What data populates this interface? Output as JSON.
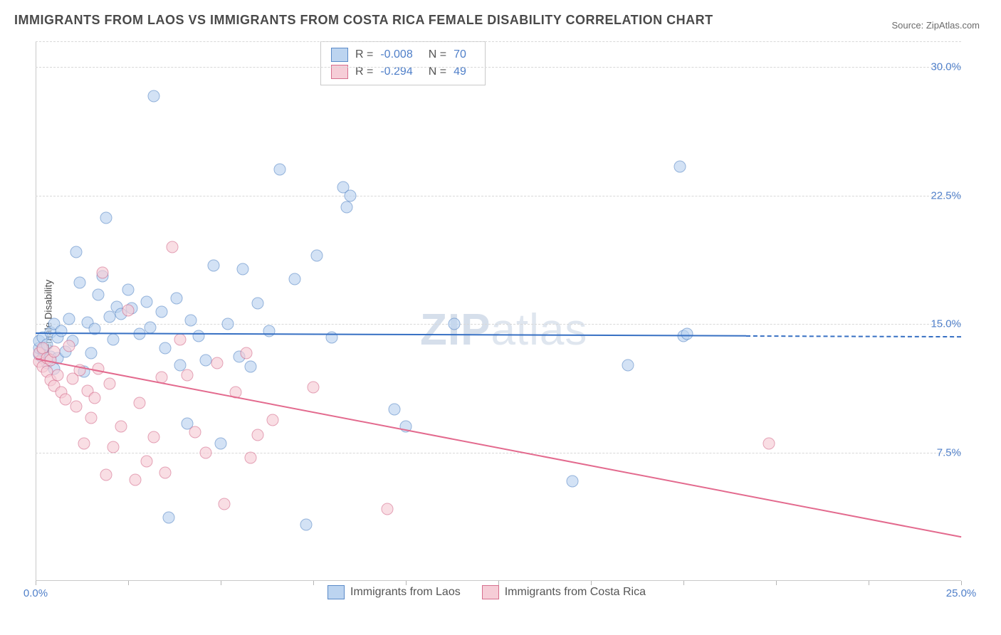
{
  "title": "IMMIGRANTS FROM LAOS VS IMMIGRANTS FROM COSTA RICA FEMALE DISABILITY CORRELATION CHART",
  "source_label": "Source: ZipAtlas.com",
  "ylabel": "Female Disability",
  "watermark": "ZIPatlas",
  "chart": {
    "type": "scatter",
    "xlim": [
      0,
      25
    ],
    "ylim": [
      0,
      31.5
    ],
    "xticks": [
      0,
      2.5,
      5,
      7.5,
      10,
      12.5,
      15,
      17.5,
      20,
      22.5,
      25
    ],
    "xtick_labels": {
      "0": "0.0%",
      "25": "25.0%"
    },
    "yticks": [
      7.5,
      15.0,
      22.5,
      30.0
    ],
    "ytick_labels": [
      "7.5%",
      "15.0%",
      "22.5%",
      "30.0%"
    ],
    "grid_dashes_y": [
      7.5,
      15.0,
      22.5,
      30.0,
      31.5
    ],
    "background_color": "#ffffff",
    "grid_color": "#d8d8d8",
    "axis_color": "#c9c9c9",
    "tick_label_color": "#4f7fc9",
    "marker_size": 17,
    "marker_opacity": 0.65,
    "marker_border_width": 1.2,
    "series": [
      {
        "name": "Immigrants from Laos",
        "fill_color": "#bcd4f0",
        "stroke_color": "#5a8ac8",
        "R": "-0.008",
        "N": "70",
        "trend": {
          "y_at_x0": 14.5,
          "y_at_x25": 14.3,
          "x_solid_end": 19.2,
          "line_color": "#3770c3",
          "line_width": 2
        },
        "points": [
          [
            0.1,
            13.2
          ],
          [
            0.1,
            13.6
          ],
          [
            0.1,
            14.0
          ],
          [
            0.2,
            13.0
          ],
          [
            0.2,
            13.5
          ],
          [
            0.2,
            14.2
          ],
          [
            0.3,
            12.7
          ],
          [
            0.3,
            13.8
          ],
          [
            0.4,
            14.5
          ],
          [
            0.4,
            13.1
          ],
          [
            0.5,
            15.0
          ],
          [
            0.5,
            12.4
          ],
          [
            0.6,
            14.2
          ],
          [
            0.6,
            13.0
          ],
          [
            0.7,
            14.6
          ],
          [
            0.8,
            13.4
          ],
          [
            0.9,
            15.3
          ],
          [
            1.0,
            14.0
          ],
          [
            1.1,
            19.2
          ],
          [
            1.2,
            17.4
          ],
          [
            1.3,
            12.2
          ],
          [
            1.4,
            15.1
          ],
          [
            1.5,
            13.3
          ],
          [
            1.6,
            14.7
          ],
          [
            1.7,
            16.7
          ],
          [
            1.8,
            17.8
          ],
          [
            1.9,
            21.2
          ],
          [
            2.0,
            15.4
          ],
          [
            2.1,
            14.1
          ],
          [
            2.2,
            16.0
          ],
          [
            2.3,
            15.6
          ],
          [
            2.5,
            17.0
          ],
          [
            2.6,
            15.9
          ],
          [
            2.8,
            14.4
          ],
          [
            3.0,
            16.3
          ],
          [
            3.1,
            14.8
          ],
          [
            3.2,
            28.3
          ],
          [
            3.4,
            15.7
          ],
          [
            3.5,
            13.6
          ],
          [
            3.6,
            3.7
          ],
          [
            3.8,
            16.5
          ],
          [
            3.9,
            12.6
          ],
          [
            4.1,
            9.2
          ],
          [
            4.2,
            15.2
          ],
          [
            4.4,
            14.3
          ],
          [
            4.6,
            12.9
          ],
          [
            4.8,
            18.4
          ],
          [
            5.0,
            8.0
          ],
          [
            5.2,
            15.0
          ],
          [
            5.5,
            13.1
          ],
          [
            5.6,
            18.2
          ],
          [
            5.8,
            12.5
          ],
          [
            6.0,
            16.2
          ],
          [
            6.3,
            14.6
          ],
          [
            6.6,
            24.0
          ],
          [
            7.0,
            17.6
          ],
          [
            7.3,
            3.3
          ],
          [
            7.6,
            19.0
          ],
          [
            8.0,
            14.2
          ],
          [
            8.3,
            23.0
          ],
          [
            8.4,
            21.8
          ],
          [
            8.5,
            22.5
          ],
          [
            9.7,
            10.0
          ],
          [
            10.0,
            9.0
          ],
          [
            11.3,
            15.0
          ],
          [
            14.5,
            5.8
          ],
          [
            16.0,
            12.6
          ],
          [
            17.4,
            24.2
          ],
          [
            17.5,
            14.3
          ],
          [
            17.6,
            14.4
          ]
        ]
      },
      {
        "name": "Immigrants from Costa Rica",
        "fill_color": "#f6cdd7",
        "stroke_color": "#d66f8e",
        "R": "-0.294",
        "N": "49",
        "trend": {
          "y_at_x0": 13.0,
          "y_at_x25": 2.6,
          "x_solid_end": 25,
          "line_color": "#e36a8e",
          "line_width": 2
        },
        "points": [
          [
            0.1,
            12.8
          ],
          [
            0.1,
            13.3
          ],
          [
            0.2,
            12.5
          ],
          [
            0.2,
            13.6
          ],
          [
            0.3,
            12.2
          ],
          [
            0.3,
            13.0
          ],
          [
            0.4,
            11.7
          ],
          [
            0.4,
            12.9
          ],
          [
            0.5,
            11.4
          ],
          [
            0.5,
            13.4
          ],
          [
            0.6,
            12.0
          ],
          [
            0.7,
            11.0
          ],
          [
            0.8,
            10.6
          ],
          [
            0.9,
            13.7
          ],
          [
            1.0,
            11.8
          ],
          [
            1.1,
            10.2
          ],
          [
            1.2,
            12.3
          ],
          [
            1.3,
            8.0
          ],
          [
            1.4,
            11.1
          ],
          [
            1.5,
            9.5
          ],
          [
            1.6,
            10.7
          ],
          [
            1.7,
            12.4
          ],
          [
            1.8,
            18.0
          ],
          [
            1.9,
            6.2
          ],
          [
            2.0,
            11.5
          ],
          [
            2.1,
            7.8
          ],
          [
            2.3,
            9.0
          ],
          [
            2.5,
            15.8
          ],
          [
            2.7,
            5.9
          ],
          [
            2.8,
            10.4
          ],
          [
            3.0,
            7.0
          ],
          [
            3.2,
            8.4
          ],
          [
            3.4,
            11.9
          ],
          [
            3.5,
            6.3
          ],
          [
            3.7,
            19.5
          ],
          [
            3.9,
            14.1
          ],
          [
            4.1,
            12.0
          ],
          [
            4.3,
            8.7
          ],
          [
            4.6,
            7.5
          ],
          [
            4.9,
            12.7
          ],
          [
            5.1,
            4.5
          ],
          [
            5.4,
            11.0
          ],
          [
            5.7,
            13.3
          ],
          [
            5.8,
            7.2
          ],
          [
            6.0,
            8.5
          ],
          [
            6.4,
            9.4
          ],
          [
            7.5,
            11.3
          ],
          [
            9.5,
            4.2
          ],
          [
            19.8,
            8.0
          ]
        ]
      }
    ]
  },
  "stats_box": {
    "border_color": "#c9c9c9",
    "label_color": "#555555",
    "value_color": "#4f7fc9"
  },
  "legend_bottom": [
    {
      "label": "Immigrants from Laos",
      "fill": "#bcd4f0",
      "stroke": "#5a8ac8"
    },
    {
      "label": "Immigrants from Costa Rica",
      "fill": "#f6cdd7",
      "stroke": "#d66f8e"
    }
  ]
}
